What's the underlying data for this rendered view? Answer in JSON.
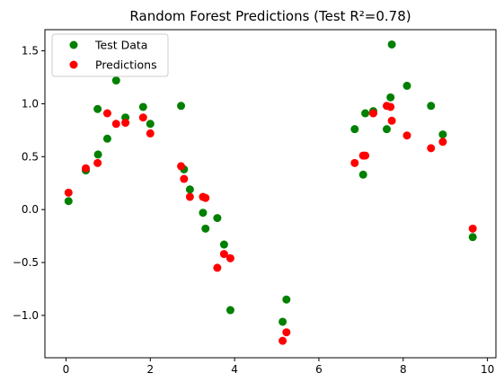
{
  "chart_data": {
    "type": "scatter",
    "title": "Random Forest Predictions (Test R²=0.78)",
    "xlabel": "",
    "ylabel": "",
    "xlim": [
      -0.5,
      10.2
    ],
    "ylim": [
      -1.4,
      1.7
    ],
    "x_ticks": [
      0,
      2,
      4,
      6,
      8,
      10
    ],
    "y_ticks": [
      -1.0,
      -0.5,
      0.0,
      0.5,
      1.0,
      1.5
    ],
    "grid": false,
    "legend_position": "top-left",
    "series": [
      {
        "name": "Test Data",
        "color": "#008000",
        "points": [
          [
            0.06,
            0.08
          ],
          [
            0.47,
            0.37
          ],
          [
            0.75,
            0.95
          ],
          [
            0.76,
            0.52
          ],
          [
            0.98,
            0.67
          ],
          [
            1.19,
            1.22
          ],
          [
            1.41,
            0.87
          ],
          [
            1.83,
            0.97
          ],
          [
            2.0,
            0.81
          ],
          [
            2.73,
            0.98
          ],
          [
            2.8,
            0.38
          ],
          [
            2.94,
            0.19
          ],
          [
            3.25,
            -0.03
          ],
          [
            3.31,
            -0.18
          ],
          [
            3.59,
            -0.08
          ],
          [
            3.75,
            -0.33
          ],
          [
            3.9,
            -0.95
          ],
          [
            5.14,
            -1.06
          ],
          [
            5.23,
            -0.85
          ],
          [
            6.85,
            0.76
          ],
          [
            7.05,
            0.33
          ],
          [
            7.1,
            0.91
          ],
          [
            7.29,
            0.93
          ],
          [
            7.61,
            0.76
          ],
          [
            7.7,
            1.06
          ],
          [
            7.73,
            1.56
          ],
          [
            8.09,
            1.17
          ],
          [
            8.66,
            0.98
          ],
          [
            8.94,
            0.71
          ],
          [
            9.65,
            -0.26
          ]
        ]
      },
      {
        "name": "Predictions",
        "color": "#ff0000",
        "points": [
          [
            0.06,
            0.16
          ],
          [
            0.47,
            0.39
          ],
          [
            0.75,
            0.44
          ],
          [
            0.98,
            0.91
          ],
          [
            1.19,
            0.81
          ],
          [
            1.41,
            0.82
          ],
          [
            1.83,
            0.87
          ],
          [
            2.0,
            0.72
          ],
          [
            2.73,
            0.41
          ],
          [
            2.8,
            0.29
          ],
          [
            2.94,
            0.12
          ],
          [
            3.25,
            0.12
          ],
          [
            3.31,
            0.11
          ],
          [
            3.59,
            -0.55
          ],
          [
            3.75,
            -0.42
          ],
          [
            3.9,
            -0.46
          ],
          [
            5.14,
            -1.24
          ],
          [
            5.23,
            -1.16
          ],
          [
            6.85,
            0.44
          ],
          [
            7.05,
            0.51
          ],
          [
            7.1,
            0.51
          ],
          [
            7.29,
            0.91
          ],
          [
            7.61,
            0.98
          ],
          [
            7.7,
            0.97
          ],
          [
            7.73,
            0.84
          ],
          [
            8.09,
            0.7
          ],
          [
            8.66,
            0.58
          ],
          [
            8.94,
            0.64
          ],
          [
            9.65,
            -0.18
          ]
        ]
      }
    ]
  }
}
